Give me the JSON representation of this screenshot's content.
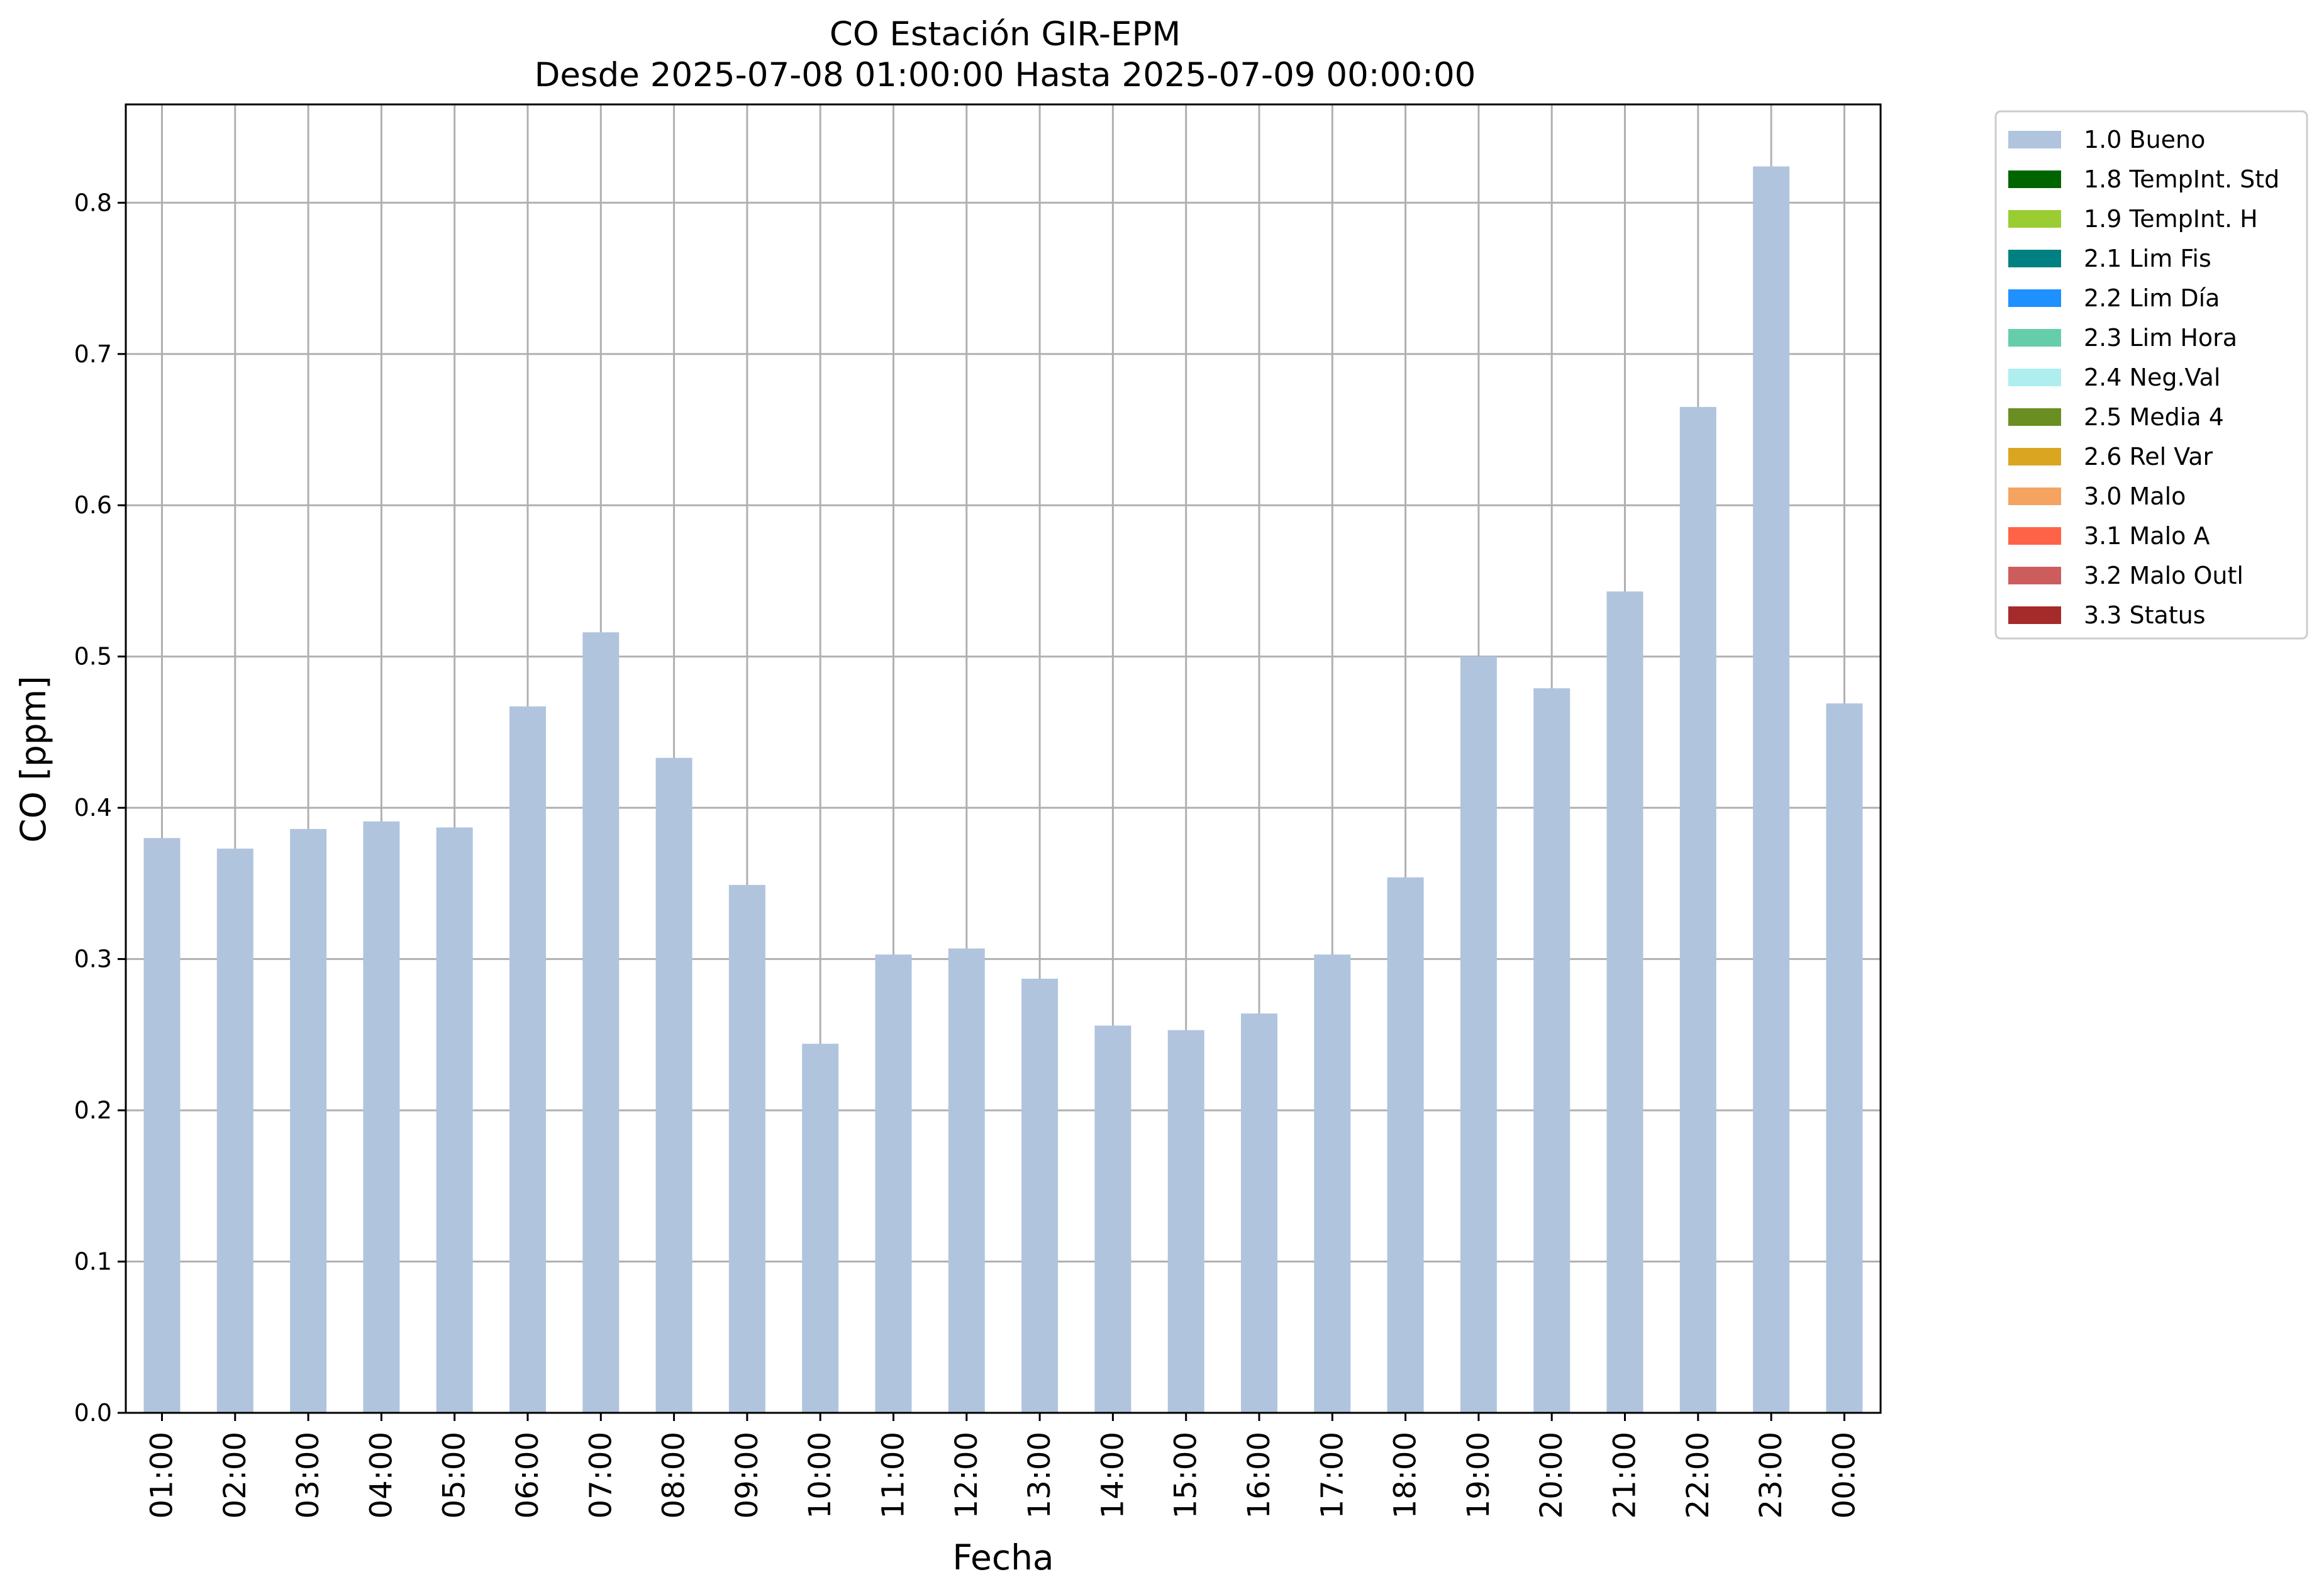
{
  "chart_data": {
    "type": "bar",
    "title": "CO Estación GIR-EPM",
    "subtitle": "Desde 2025-07-08 01:00:00 Hasta 2025-07-09 00:00:00",
    "xlabel": "Fecha",
    "ylabel": "CO [ppm]",
    "ylim": [
      0,
      0.865
    ],
    "yticks": [
      "0.0",
      "0.1",
      "0.2",
      "0.3",
      "0.4",
      "0.5",
      "0.6",
      "0.7",
      "0.8"
    ],
    "ytick_values": [
      0,
      0.1,
      0.2,
      0.3,
      0.4,
      0.5,
      0.6,
      0.7,
      0.8
    ],
    "categories": [
      "01:00",
      "02:00",
      "03:00",
      "04:00",
      "05:00",
      "06:00",
      "07:00",
      "08:00",
      "09:00",
      "10:00",
      "11:00",
      "12:00",
      "13:00",
      "14:00",
      "15:00",
      "16:00",
      "17:00",
      "18:00",
      "19:00",
      "20:00",
      "21:00",
      "22:00",
      "23:00",
      "00:00"
    ],
    "series": [
      {
        "name": "1.0 Bueno",
        "color": "#b0c4de",
        "values": [
          0.38,
          0.373,
          0.386,
          0.391,
          0.387,
          0.467,
          0.516,
          0.433,
          0.349,
          0.244,
          0.303,
          0.307,
          0.287,
          0.256,
          0.253,
          0.264,
          0.303,
          0.354,
          0.5,
          0.479,
          0.543,
          0.665,
          0.824,
          0.469
        ]
      }
    ],
    "legend_position": "outside right, top",
    "legend": [
      {
        "label": "1.0 Bueno",
        "color": "#b0c4de"
      },
      {
        "label": "1.8 TempInt. Std",
        "color": "#006400"
      },
      {
        "label": "1.9 TempInt. H",
        "color": "#9acd32"
      },
      {
        "label": "2.1 Lim Fis",
        "color": "#008080"
      },
      {
        "label": "2.2 Lim Día",
        "color": "#1e90ff"
      },
      {
        "label": "2.3 Lim Hora",
        "color": "#66cdaa"
      },
      {
        "label": "2.4 Neg.Val",
        "color": "#afeeee"
      },
      {
        "label": "2.5 Media 4",
        "color": "#6b8e23"
      },
      {
        "label": "2.6 Rel Var",
        "color": "#daa520"
      },
      {
        "label": "3.0 Malo",
        "color": "#f4a460"
      },
      {
        "label": "3.1 Malo A",
        "color": "#ff6347"
      },
      {
        "label": "3.2 Malo Outl",
        "color": "#cd5c5c"
      },
      {
        "label": "3.3 Status",
        "color": "#a52a2a"
      }
    ],
    "grid": true
  }
}
